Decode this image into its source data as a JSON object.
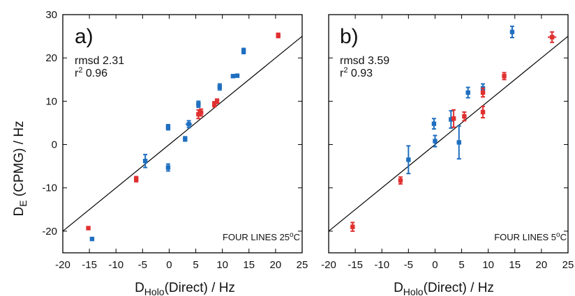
{
  "colors": {
    "series_blue": "#1f6fc0",
    "series_red": "#e03030",
    "line": "#000000"
  },
  "axis_labels": {
    "x": {
      "main": "D",
      "sub": "Holo",
      "rest": "(Direct) / Hz"
    },
    "y": {
      "main": "D",
      "sub": "E",
      "rest": " (CPMG)  / Hz"
    }
  },
  "chart_data": [
    {
      "type": "scatter",
      "panel_label": "a)",
      "stats": {
        "rmsd": "rmsd 2.31",
        "r2_prefix": "r",
        "r2_sup": "2",
        "r2_value": " 0.96"
      },
      "condition": {
        "text": "FOUR LINES 25",
        "sup": "o",
        "unit": "C"
      },
      "xlim": [
        -20,
        25
      ],
      "ylim": [
        -25,
        30
      ],
      "xticks": [
        -20,
        -15,
        -10,
        -5,
        0,
        5,
        10,
        15,
        20,
        25
      ],
      "yticks": [
        -20,
        -10,
        0,
        10,
        20,
        30
      ],
      "series": [
        {
          "color": "blue",
          "points": [
            {
              "x": -14.5,
              "y": -21.8,
              "xe": 0.2,
              "ye": 0.3
            },
            {
              "x": -4.5,
              "y": -3.8,
              "xe": 0.2,
              "ye": 1.5
            },
            {
              "x": -0.2,
              "y": 4.0,
              "xe": 0.2,
              "ye": 0.6
            },
            {
              "x": -0.2,
              "y": -5.3,
              "xe": 0.2,
              "ye": 0.8
            },
            {
              "x": 3.0,
              "y": 1.3,
              "xe": 0.2,
              "ye": 0.5
            },
            {
              "x": 3.7,
              "y": 4.7,
              "xe": 0.6,
              "ye": 0.8
            },
            {
              "x": 5.5,
              "y": 9.3,
              "xe": 0.2,
              "ye": 0.7
            },
            {
              "x": 9.5,
              "y": 13.3,
              "xe": 0.2,
              "ye": 0.7
            },
            {
              "x": 12.0,
              "y": 15.8,
              "xe": 0.4,
              "ye": 0.4
            },
            {
              "x": 12.8,
              "y": 15.9,
              "xe": 0.3,
              "ye": 0.4
            },
            {
              "x": 14.0,
              "y": 21.6,
              "xe": 0.2,
              "ye": 0.6
            }
          ]
        },
        {
          "color": "red",
          "points": [
            {
              "x": -15.2,
              "y": -19.3,
              "xe": 0.3,
              "ye": 0.3
            },
            {
              "x": -6.2,
              "y": -8.0,
              "xe": 0.2,
              "ye": 0.6
            },
            {
              "x": 5.5,
              "y": 7.0,
              "xe": 0.3,
              "ye": 1.0
            },
            {
              "x": 6.0,
              "y": 7.4,
              "xe": 0.3,
              "ye": 0.8
            },
            {
              "x": 8.5,
              "y": 9.3,
              "xe": 0.2,
              "ye": 0.6
            },
            {
              "x": 9.0,
              "y": 10.0,
              "xe": 0.2,
              "ye": 0.5
            },
            {
              "x": 20.5,
              "y": 25.2,
              "xe": 0.3,
              "ye": 0.5
            }
          ]
        }
      ]
    },
    {
      "type": "scatter",
      "panel_label": "b)",
      "stats": {
        "rmsd": "rmsd 3.59",
        "r2_prefix": "r",
        "r2_sup": "2",
        "r2_value": " 0.93"
      },
      "condition": {
        "text": "FOUR LINES 5",
        "sup": "o",
        "unit": "C"
      },
      "xlim": [
        -20,
        25
      ],
      "ylim": [
        -25,
        30
      ],
      "xticks": [
        -20,
        -15,
        -10,
        -5,
        0,
        5,
        10,
        15,
        20,
        25
      ],
      "yticks": [
        -20,
        -10,
        0,
        10,
        20,
        30
      ],
      "series": [
        {
          "color": "blue",
          "points": [
            {
              "x": -5.0,
              "y": -3.5,
              "xe": 0.2,
              "ye": 3.2
            },
            {
              "x": -0.2,
              "y": 4.8,
              "xe": 0.2,
              "ye": 1.2
            },
            {
              "x": 0.0,
              "y": 0.8,
              "xe": 0.3,
              "ye": 1.3
            },
            {
              "x": 3.0,
              "y": 5.8,
              "xe": 0.3,
              "ye": 2.0
            },
            {
              "x": 4.5,
              "y": 0.5,
              "xe": 0.2,
              "ye": 3.8
            },
            {
              "x": 6.2,
              "y": 12.0,
              "xe": 0.3,
              "ye": 1.2
            },
            {
              "x": 9.0,
              "y": 13.0,
              "xe": 0.2,
              "ye": 1.0
            },
            {
              "x": 14.5,
              "y": 26.0,
              "xe": 0.2,
              "ye": 1.3
            }
          ]
        },
        {
          "color": "red",
          "points": [
            {
              "x": -15.5,
              "y": -19.0,
              "xe": 0.2,
              "ye": 1.0
            },
            {
              "x": -6.5,
              "y": -8.3,
              "xe": 0.3,
              "ye": 0.8
            },
            {
              "x": 3.5,
              "y": 6.0,
              "xe": 0.4,
              "ye": 2.0
            },
            {
              "x": 5.5,
              "y": 6.5,
              "xe": 0.3,
              "ye": 1.0
            },
            {
              "x": 9.0,
              "y": 7.5,
              "xe": 0.3,
              "ye": 1.3
            },
            {
              "x": 9.0,
              "y": 12.0,
              "xe": 0.3,
              "ye": 1.0
            },
            {
              "x": 13.0,
              "y": 15.8,
              "xe": 0.3,
              "ye": 0.8
            },
            {
              "x": 22.0,
              "y": 24.8,
              "xe": 0.8,
              "ye": 1.2
            }
          ]
        }
      ]
    }
  ]
}
